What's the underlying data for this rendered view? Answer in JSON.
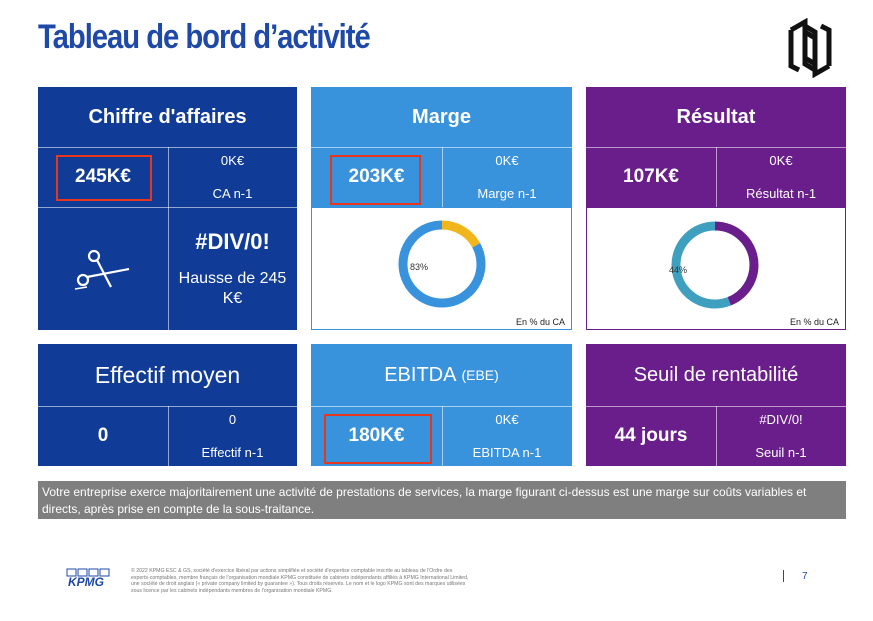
{
  "page": {
    "title": "Tableau de bord d’activité",
    "page_number": "7"
  },
  "colors": {
    "navy": "#103c98",
    "blue": "#3992dc",
    "purple": "#6a1e8c",
    "highlight": "#e8371f",
    "donut_marge_secondary": "#f1b61b",
    "donut_resultat_secondary": "#3f9fbf"
  },
  "cards": {
    "ca": {
      "header": "Chiffre d'affaires",
      "value": "245K€",
      "prev_value": "0K€",
      "prev_label": "CA n-1",
      "variation": "#DIV/0!",
      "variation_text": "Hausse de 245 K€",
      "icon": "scissors-icon"
    },
    "marge": {
      "header": "Marge",
      "value": "203K€",
      "prev_value": "0K€",
      "prev_label": "Marge n-1",
      "chart_pct_label": "83%",
      "chart_note": "En % du CA"
    },
    "resultat": {
      "header": "Résultat",
      "value": "107K€",
      "prev_value": "0K€",
      "prev_label": "Résultat n-1",
      "chart_pct_label": "44%",
      "chart_note": "En % du CA"
    },
    "effectif": {
      "header": "Effectif moyen",
      "value": "0",
      "prev_value": "0",
      "prev_label": "Effectif n-1"
    },
    "ebitda": {
      "header": "EBITDA",
      "header_suffix": "(EBE)",
      "value": "180K€",
      "prev_value": "0K€",
      "prev_label": "EBITDA n-1"
    },
    "seuil": {
      "header": "Seuil de rentabilité",
      "value": "44 jours",
      "prev_value": "#DIV/0!",
      "prev_label": "Seuil n-1"
    }
  },
  "chart_data": [
    {
      "type": "pie",
      "categories": [
        "Marge",
        ""
      ],
      "values": [
        83,
        17
      ]
    },
    {
      "type": "pie",
      "categories": [
        "Résultat",
        ""
      ],
      "values": [
        44,
        56
      ]
    }
  ],
  "banner": {
    "text": "Votre entreprise exerce majoritairement une activité de prestations de services, la marge figurant ci-dessus est une marge sur coûts variables et directs, après prise en compte de la sous-traitance."
  },
  "footer": {
    "logo_text": "KPMG",
    "legal": "© 2022 KPMG ESC & GS, société d'exercice libéral par actions simplifiée et société d'expertise comptable inscrite au tableau de l'Ordre des experts-comptables, membre français de l'organisation mondiale KPMG constituée de cabinets indépendants affiliés à KPMG International Limited, une société de droit anglais (« private company limited by guarantee »). Tous droits réservés. Le nom et le logo KPMG sont des marques utilisées sous licence par les cabinets indépendants membres de l'organisation mondiale KPMG."
  }
}
